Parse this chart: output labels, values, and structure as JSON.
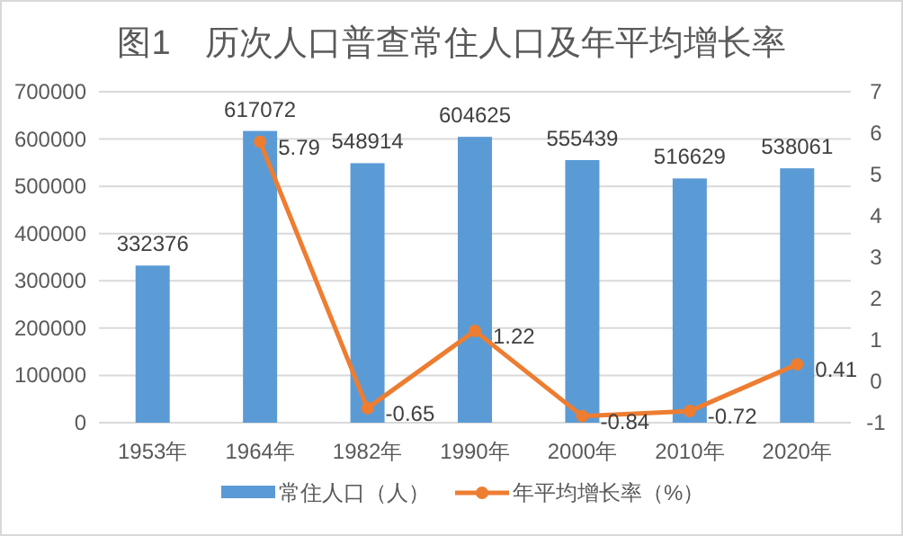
{
  "chart_data": {
    "type": "bar",
    "title": "图1　历次人口普查常住人口及年平均增长率",
    "categories": [
      "1953年",
      "1964年",
      "1982年",
      "1990年",
      "2000年",
      "2010年",
      "2020年"
    ],
    "series": [
      {
        "name": "常住人口（人）",
        "color": "#5b9bd5",
        "values": [
          332376,
          617072,
          548914,
          604625,
          555439,
          516629,
          538061
        ]
      },
      {
        "name": "年平均增长率（%）",
        "type": "line",
        "axis": "y2",
        "color": "#ed7d31",
        "marker": "circle",
        "values": [
          null,
          5.79,
          -0.65,
          1.22,
          -0.84,
          -0.72,
          0.41
        ]
      }
    ],
    "ylim": [
      0,
      700000
    ],
    "yticks": [
      0,
      100000,
      200000,
      300000,
      400000,
      500000,
      600000,
      700000
    ],
    "y2lim": [
      -1,
      7
    ],
    "y2ticks": [
      -1,
      0,
      1,
      2,
      3,
      4,
      5,
      6,
      7
    ],
    "grid": "y",
    "legend": "bottom",
    "data_labels": true
  }
}
